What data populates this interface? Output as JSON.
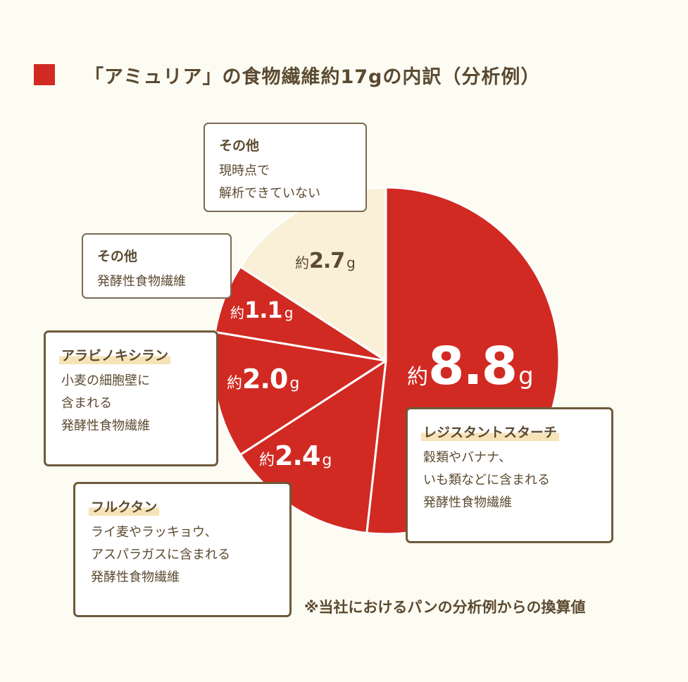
{
  "title": "「アミュリア」の食物繊維約17gの内訳（分析例）",
  "colors": {
    "main": "#d12a23",
    "unknown": "#faf0d8",
    "text": "#5b4a30",
    "border": "#6e5a3b"
  },
  "chart_data": {
    "type": "pie",
    "title": "「アミュリア」の食物繊維約17gの内訳（分析例）",
    "unit": "g",
    "slices": [
      {
        "label": "レジスタントスターチ",
        "value": 8.8,
        "display": {
          "prefix": "約",
          "number": "8.8",
          "unit": "g"
        }
      },
      {
        "label": "フルクタン",
        "value": 2.4,
        "display": {
          "prefix": "約",
          "number": "2.4",
          "unit": "g"
        }
      },
      {
        "label": "アラビノキシラン",
        "value": 2.0,
        "display": {
          "prefix": "約",
          "number": "2.0",
          "unit": "g"
        }
      },
      {
        "label": "その他 発酵性食物繊維",
        "value": 1.1,
        "display": {
          "prefix": "約",
          "number": "1.1",
          "unit": "g"
        }
      },
      {
        "label": "その他 現時点で解析できていない",
        "value": 2.7,
        "display": {
          "prefix": "約",
          "number": "2.7",
          "unit": "g"
        }
      }
    ]
  },
  "callouts": {
    "other_unknown": {
      "title": "その他",
      "lines": [
        "現時点で",
        "解析できていない"
      ]
    },
    "other_fermentable": {
      "title": "その他",
      "lines": [
        "発酵性食物繊維"
      ]
    },
    "arabinoxylan": {
      "title": "アラビノキシラン",
      "lines": [
        "小麦の細胞壁に",
        "含まれる",
        "発酵性食物繊維"
      ]
    },
    "fructan": {
      "title": "フルクタン",
      "lines": [
        "ライ麦やラッキョウ、",
        "アスパラガスに含まれる",
        "発酵性食物繊維"
      ]
    },
    "resistant_starch": {
      "title": "レジスタントスターチ",
      "lines": [
        "穀類やバナナ、",
        "いも類などに含まれる",
        "発酵性食物繊維"
      ]
    }
  },
  "note": "※当社におけるパンの分析例からの換算値"
}
